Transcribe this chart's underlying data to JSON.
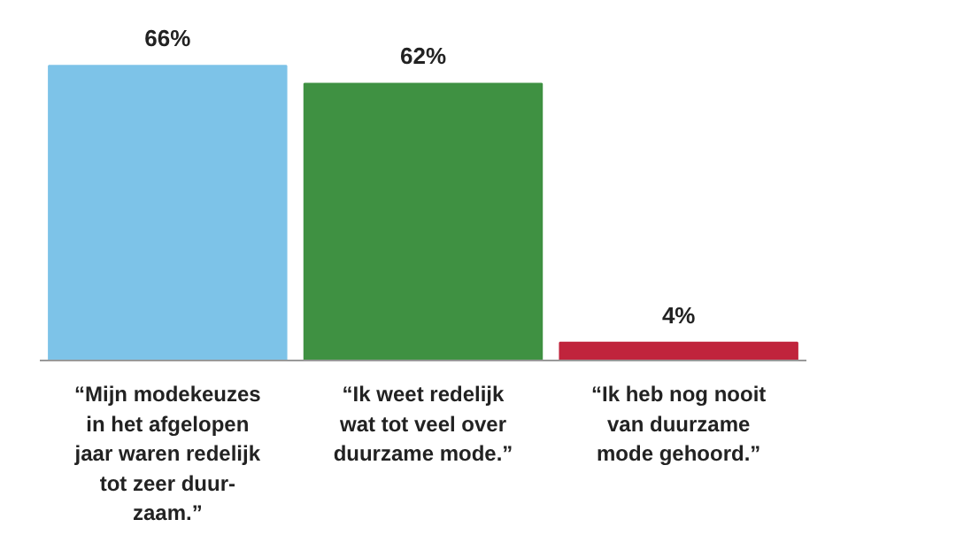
{
  "chart_data": {
    "type": "bar",
    "categories": [
      "“Mijn modekeuzes\nin het afgelopen\njaar waren redelijk\ntot zeer duur-\nzaam.”",
      "“Ik weet redelijk\nwat tot veel over\nduurzame mode.”",
      "“Ik heb nog nooit\nvan duurzame\nmode gehoord.”"
    ],
    "values": [
      66,
      62,
      4
    ],
    "colors": [
      "#7dc3e8",
      "#3f9142",
      "#c0243c"
    ],
    "value_labels": [
      "66%",
      "62%",
      "4%"
    ],
    "grid": false
  }
}
